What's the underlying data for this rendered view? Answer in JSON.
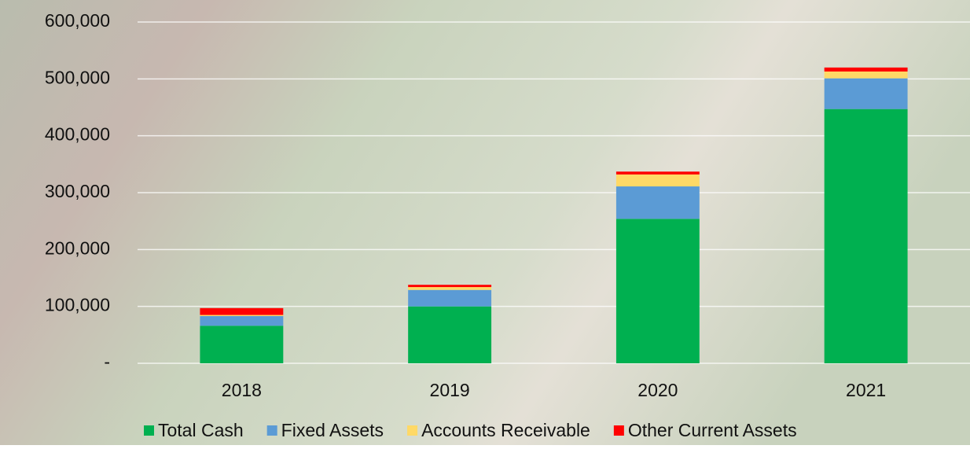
{
  "chart_data": {
    "type": "stacked-bar",
    "categories": [
      "2018",
      "2019",
      "2020",
      "2021"
    ],
    "series": [
      {
        "name": "Total Cash",
        "color": "#00b050",
        "values": [
          66000,
          100000,
          254000,
          447000
        ]
      },
      {
        "name": "Fixed Assets",
        "color": "#5b9bd5",
        "values": [
          17000,
          29000,
          57000,
          54000
        ]
      },
      {
        "name": "Accounts Receivable",
        "color": "#ffd966",
        "values": [
          2000,
          5000,
          21000,
          12000
        ]
      },
      {
        "name": "Other Current Assets",
        "color": "#ff0000",
        "values": [
          12000,
          4000,
          5000,
          7000
        ]
      }
    ],
    "ylim": [
      0,
      600000
    ],
    "yticks": [
      {
        "value": 0,
        "label": "-"
      },
      {
        "value": 100000,
        "label": "100,000"
      },
      {
        "value": 200000,
        "label": "200,000"
      },
      {
        "value": 300000,
        "label": "300,000"
      },
      {
        "value": 400000,
        "label": "400,000"
      },
      {
        "value": 500000,
        "label": "500,000"
      },
      {
        "value": 600000,
        "label": "600,000"
      }
    ],
    "grid": true,
    "legend": "bottom"
  }
}
